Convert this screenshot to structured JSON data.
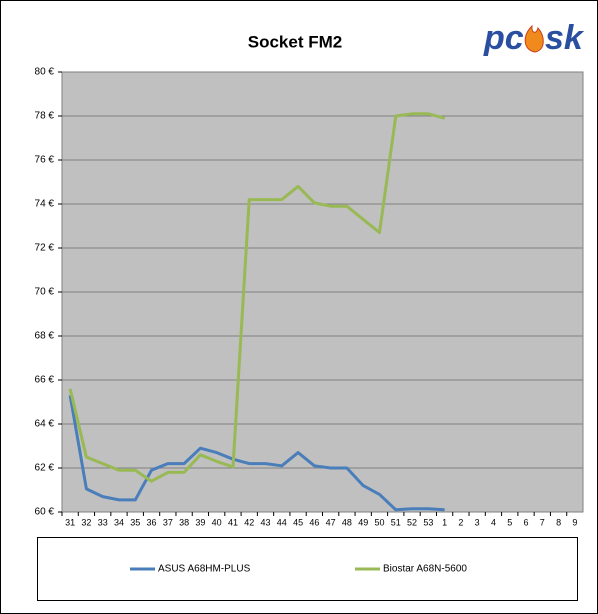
{
  "chart_data": {
    "type": "line",
    "title": "Socket FM2",
    "logo": [
      "pc",
      "sk"
    ],
    "categories": [
      "31",
      "32",
      "33",
      "34",
      "35",
      "36",
      "37",
      "38",
      "39",
      "40",
      "41",
      "42",
      "43",
      "44",
      "45",
      "46",
      "47",
      "48",
      "49",
      "50",
      "51",
      "52",
      "53",
      "1",
      "2",
      "3",
      "4",
      "5",
      "6",
      "7",
      "8",
      "9"
    ],
    "series": [
      {
        "name": "ASUS A68HM-PLUS",
        "color": "#4a7ebb",
        "values": [
          65.3,
          61.05,
          60.7,
          60.55,
          60.55,
          61.9,
          62.2,
          62.2,
          62.9,
          62.7,
          62.4,
          62.2,
          62.2,
          62.1,
          62.7,
          62.1,
          62.0,
          62.0,
          61.2,
          60.8,
          60.1,
          60.15,
          60.15,
          60.1,
          null,
          null,
          null,
          null,
          null,
          null,
          null,
          null
        ]
      },
      {
        "name": "Biostar A68N-5600",
        "color": "#98b954",
        "values": [
          65.6,
          62.5,
          62.2,
          61.9,
          61.9,
          61.4,
          61.8,
          61.8,
          62.6,
          62.3,
          62.05,
          74.2,
          74.2,
          74.2,
          74.8,
          74.05,
          73.9,
          73.9,
          73.3,
          72.7,
          78.0,
          78.1,
          78.1,
          77.9,
          null,
          null,
          null,
          null,
          null,
          null,
          null,
          null
        ]
      }
    ],
    "ylim": [
      60,
      80
    ],
    "yticks": [
      {
        "value": 60,
        "label": "60 €"
      },
      {
        "value": 62,
        "label": "62 €"
      },
      {
        "value": 64,
        "label": "64 €"
      },
      {
        "value": 66,
        "label": "66 €"
      },
      {
        "value": 68,
        "label": "68 €"
      },
      {
        "value": 70,
        "label": "70 €"
      },
      {
        "value": 72,
        "label": "72 €"
      },
      {
        "value": 74,
        "label": "74 €"
      },
      {
        "value": 76,
        "label": "76 €"
      },
      {
        "value": 78,
        "label": "78 €"
      },
      {
        "value": 80,
        "label": "80 €"
      }
    ],
    "grid": true,
    "legend": "bottom"
  }
}
